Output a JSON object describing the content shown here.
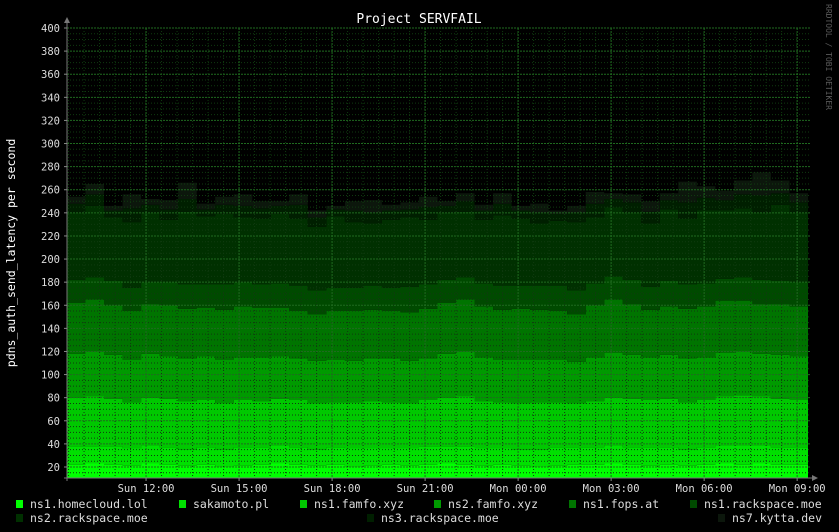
{
  "chart_data": {
    "type": "area",
    "stacked": true,
    "title": "Project SERVFAIL",
    "ylabel": "pdns_auth_send_latency per second",
    "xlabel": "",
    "watermark": "RRDTOOL / TOBI OETIKER",
    "ylim": [
      10.5,
      400
    ],
    "y_ticks": [
      20,
      40,
      60,
      80,
      100,
      120,
      140,
      160,
      180,
      200,
      220,
      240,
      260,
      280,
      300,
      320,
      340,
      360,
      380,
      400
    ],
    "y_minor_step": 5,
    "x_range_hours": [
      9.45,
      33.35
    ],
    "x_ticks": [
      {
        "hour": 12,
        "label": "Sun 12:00"
      },
      {
        "hour": 15,
        "label": "Sun 15:00"
      },
      {
        "hour": 18,
        "label": "Sun 18:00"
      },
      {
        "hour": 21,
        "label": "Sun 21:00"
      },
      {
        "hour": 24,
        "label": "Mon 00:00"
      },
      {
        "hour": 27,
        "label": "Mon 03:00"
      },
      {
        "hour": 30,
        "label": "Mon 06:00"
      },
      {
        "hour": 33,
        "label": "Mon 09:00"
      }
    ],
    "x_minor_step_hours": 0.5,
    "grid": true,
    "legend_position": "bottom",
    "series": [
      {
        "name": "ns1.homecloud.lol",
        "color": "#00ff00",
        "values": [
          22,
          23,
          22,
          21,
          23,
          22,
          21,
          22,
          20,
          21,
          22,
          23,
          22,
          21,
          22,
          20,
          21,
          22,
          21,
          22,
          23,
          22,
          21,
          22,
          21,
          20,
          21,
          22,
          22,
          23,
          22,
          21,
          22,
          21,
          22,
          23,
          22,
          23,
          22,
          22
        ]
      },
      {
        "name": "sakamoto.pl",
        "color": "#00e000",
        "values": [
          16,
          15,
          16,
          15,
          16,
          15,
          14,
          15,
          15,
          16,
          15,
          16,
          15,
          14,
          15,
          16,
          15,
          14,
          15,
          16,
          15,
          16,
          15,
          14,
          14,
          15,
          16,
          15,
          15,
          16,
          15,
          16,
          15,
          14,
          15,
          16,
          17,
          16,
          15,
          15
        ]
      },
      {
        "name": "ns1.famfo.xyz",
        "color": "#00c800",
        "values": [
          42,
          43,
          41,
          40,
          41,
          42,
          42,
          41,
          40,
          41,
          40,
          40,
          41,
          40,
          39,
          40,
          41,
          40,
          39,
          40,
          42,
          43,
          41,
          40,
          40,
          41,
          39,
          38,
          40,
          41,
          42,
          41,
          42,
          41,
          41,
          42,
          43,
          42,
          42,
          41
        ]
      },
      {
        "name": "ns2.famfo.xyz",
        "color": "#009a00",
        "values": [
          38,
          39,
          38,
          37,
          38,
          37,
          37,
          38,
          38,
          37,
          38,
          37,
          36,
          37,
          37,
          36,
          37,
          38,
          37,
          36,
          38,
          39,
          38,
          37,
          38,
          37,
          37,
          36,
          38,
          39,
          38,
          37,
          38,
          38,
          37,
          38,
          38,
          37,
          38,
          38
        ]
      },
      {
        "name": "ns1.fops.at",
        "color": "#007400",
        "values": [
          44,
          45,
          43,
          42,
          43,
          44,
          43,
          42,
          43,
          44,
          43,
          42,
          41,
          40,
          42,
          43,
          42,
          41,
          42,
          43,
          44,
          45,
          44,
          43,
          44,
          43,
          42,
          41,
          45,
          46,
          44,
          41,
          42,
          43,
          44,
          45,
          44,
          43,
          44,
          43
        ]
      },
      {
        "name": "ns1.rackspace.moe",
        "color": "#004a00",
        "values": [
          20,
          19,
          21,
          20,
          19,
          20,
          21,
          20,
          22,
          21,
          20,
          21,
          22,
          21,
          20,
          20,
          21,
          20,
          22,
          21,
          20,
          19,
          20,
          21,
          20,
          21,
          22,
          21,
          19,
          20,
          21,
          20,
          22,
          21,
          20,
          19,
          20,
          21,
          20,
          21
        ]
      },
      {
        "name": "ns2.rackspace.moe",
        "color": "#003000",
        "values": [
          58,
          62,
          55,
          57,
          60,
          54,
          63,
          59,
          61,
          56,
          57,
          60,
          58,
          55,
          62,
          57,
          54,
          59,
          60,
          56,
          58,
          57,
          55,
          61,
          58,
          54,
          56,
          59,
          57,
          60,
          58,
          55,
          62,
          57,
          63,
          59,
          60,
          58,
          66,
          60
        ]
      },
      {
        "name": "ns3.rackspace.moe",
        "color": "#001f00",
        "values": [
          8,
          10,
          6,
          12,
          7,
          9,
          11,
          6,
          8,
          10,
          9,
          7,
          12,
          8,
          6,
          10,
          9,
          8,
          7,
          11,
          6,
          9,
          8,
          10,
          7,
          9,
          6,
          8,
          12,
          7,
          9,
          10,
          8,
          14,
          11,
          9,
          12,
          15,
          10,
          9
        ]
      },
      {
        "name": "ns7.kytta.dev",
        "color": "#0c170c",
        "values": [
          6,
          9,
          4,
          12,
          5,
          8,
          14,
          5,
          7,
          10,
          6,
          4,
          9,
          6,
          3,
          8,
          11,
          5,
          6,
          9,
          4,
          7,
          5,
          9,
          4,
          8,
          3,
          6,
          10,
          5,
          7,
          9,
          6,
          18,
          10,
          8,
          12,
          20,
          11,
          8
        ]
      }
    ]
  }
}
